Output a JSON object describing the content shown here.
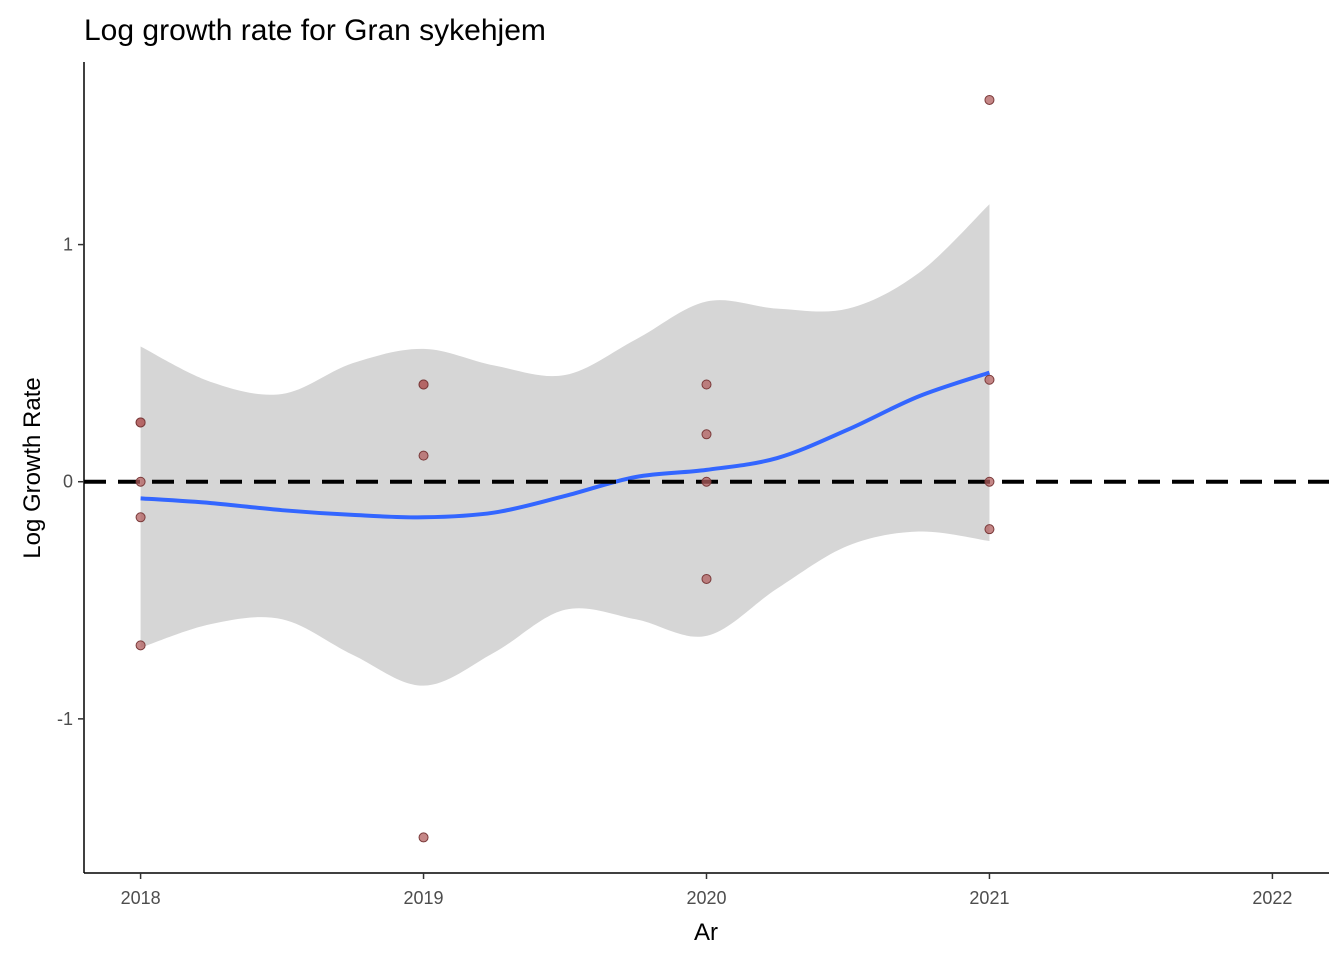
{
  "chart_data": {
    "type": "scatter",
    "title": "Log growth rate for Gran sykehjem",
    "xlabel": "Ar",
    "ylabel": "Log Growth Rate",
    "xlim": [
      2017.8,
      2022.2
    ],
    "ylim": [
      -1.65,
      1.77
    ],
    "x_ticks": [
      2018,
      2019,
      2020,
      2021,
      2022
    ],
    "y_ticks": [
      -1,
      0,
      1
    ],
    "grid": false,
    "legend": "none",
    "reference_line": {
      "y": 0,
      "style": "dashed",
      "color": "#000000"
    },
    "points": [
      {
        "x": 2018,
        "y": 0.25
      },
      {
        "x": 2018,
        "y": 0.25
      },
      {
        "x": 2018,
        "y": 0.0
      },
      {
        "x": 2018,
        "y": -0.15
      },
      {
        "x": 2018,
        "y": -0.69
      },
      {
        "x": 2019,
        "y": 0.41
      },
      {
        "x": 2019,
        "y": 0.41
      },
      {
        "x": 2019,
        "y": 0.11
      },
      {
        "x": 2019,
        "y": -1.5
      },
      {
        "x": 2020,
        "y": 0.41
      },
      {
        "x": 2020,
        "y": 0.2
      },
      {
        "x": 2020,
        "y": 0.0
      },
      {
        "x": 2020,
        "y": -0.41
      },
      {
        "x": 2021,
        "y": 1.61
      },
      {
        "x": 2021,
        "y": 0.43
      },
      {
        "x": 2021,
        "y": 0.0
      },
      {
        "x": 2021,
        "y": -0.2
      }
    ],
    "smooth": {
      "x": [
        2018,
        2018.25,
        2018.5,
        2018.75,
        2019,
        2019.25,
        2019.5,
        2019.75,
        2020,
        2020.25,
        2020.5,
        2020.75,
        2021
      ],
      "y": [
        -0.07,
        -0.09,
        -0.12,
        -0.14,
        -0.15,
        -0.13,
        -0.06,
        0.02,
        0.05,
        0.1,
        0.22,
        0.36,
        0.46
      ],
      "lower": [
        -0.7,
        -0.6,
        -0.58,
        -0.73,
        -0.86,
        -0.72,
        -0.54,
        -0.58,
        -0.65,
        -0.45,
        -0.27,
        -0.21,
        -0.25
      ],
      "upper": [
        0.57,
        0.42,
        0.37,
        0.5,
        0.56,
        0.49,
        0.45,
        0.6,
        0.76,
        0.73,
        0.73,
        0.88,
        1.17
      ]
    },
    "colors": {
      "points_fill": "#b25f5f",
      "points_stroke": "#7a3a3a",
      "smooth_line": "#3366ff",
      "ribbon": "#d6d6d6",
      "axis": "#000000"
    }
  }
}
